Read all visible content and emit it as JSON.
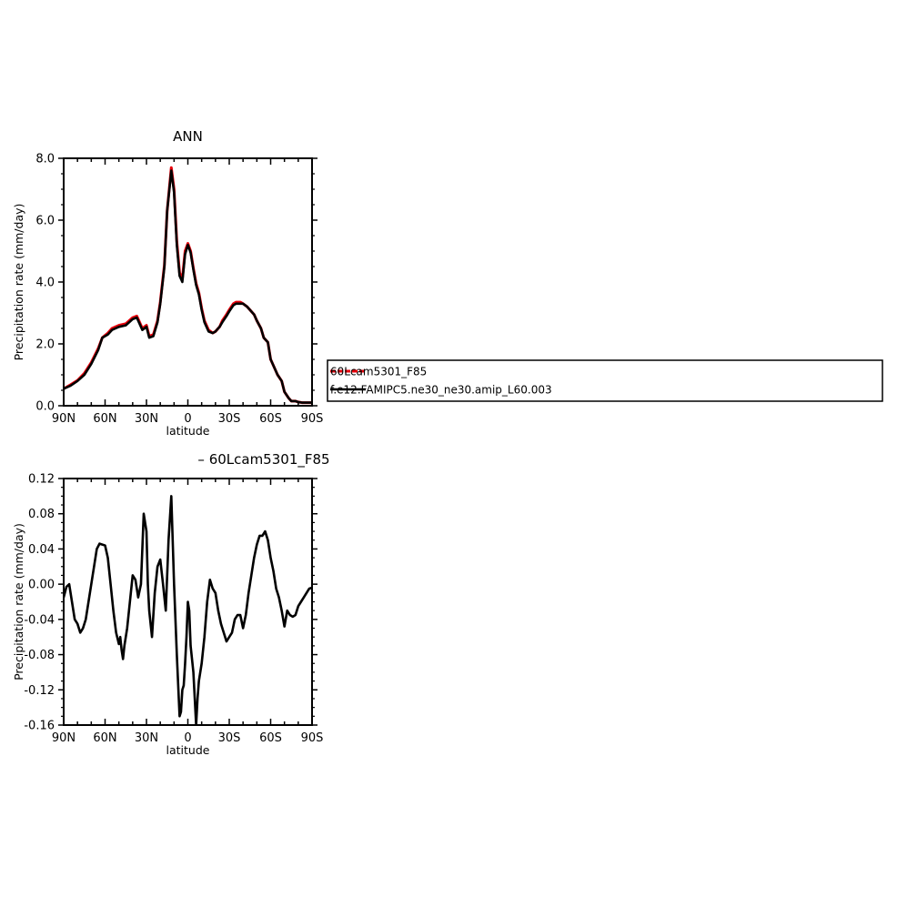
{
  "chart_data": [
    {
      "type": "line",
      "title": "ANN",
      "xlabel": "latitude",
      "ylabel": "Precipitation rate (mm/day)",
      "xlim": [
        90,
        -90
      ],
      "ylim": [
        0,
        8
      ],
      "xticks": [
        90,
        60,
        30,
        0,
        -30,
        -60,
        -90
      ],
      "xtick_labels": [
        "90N",
        "60N",
        "30N",
        "0",
        "30S",
        "60S",
        "90S"
      ],
      "yticks": [
        0,
        2,
        4,
        6,
        8
      ],
      "ytick_labels": [
        "0.0",
        "2.0",
        "4.0",
        "6.0",
        "8.0"
      ],
      "series": [
        {
          "name": "f.e12.FAMIPC5.ne30_ne30.amip_L60.003",
          "color": "#000000",
          "x": [
            90,
            85,
            80,
            75,
            70,
            65,
            62,
            58,
            55,
            50,
            45,
            40,
            37,
            33,
            30,
            28,
            25,
            22,
            20,
            17,
            15,
            12,
            10,
            8,
            6,
            4,
            2,
            0,
            -2,
            -4,
            -6,
            -8,
            -10,
            -12,
            -15,
            -18,
            -20,
            -23,
            -25,
            -28,
            -30,
            -33,
            -35,
            -38,
            -40,
            -43,
            -45,
            -48,
            -50,
            -53,
            -55,
            -58,
            -60,
            -63,
            -65,
            -68,
            -70,
            -73,
            -75,
            -78,
            -80,
            -83,
            -85,
            -88,
            -90
          ],
          "y": [
            0.55,
            0.65,
            0.8,
            1.0,
            1.35,
            1.8,
            2.2,
            2.3,
            2.45,
            2.55,
            2.6,
            2.8,
            2.85,
            2.45,
            2.55,
            2.2,
            2.25,
            2.7,
            3.3,
            4.5,
            6.3,
            7.6,
            6.9,
            5.2,
            4.2,
            4.0,
            4.9,
            5.2,
            4.95,
            4.4,
            3.9,
            3.6,
            3.1,
            2.7,
            2.4,
            2.35,
            2.4,
            2.55,
            2.7,
            2.9,
            3.05,
            3.25,
            3.3,
            3.3,
            3.3,
            3.2,
            3.1,
            2.95,
            2.75,
            2.5,
            2.2,
            2.05,
            1.5,
            1.2,
            1.0,
            0.8,
            0.45,
            0.25,
            0.15,
            0.15,
            0.12,
            0.1,
            0.1,
            0.1,
            0.1
          ]
        },
        {
          "name": "60Lcam5301_F85",
          "color": "#e8000b",
          "x": [
            90,
            85,
            80,
            75,
            70,
            65,
            62,
            58,
            55,
            50,
            45,
            40,
            37,
            33,
            30,
            28,
            25,
            22,
            20,
            17,
            15,
            12,
            10,
            8,
            6,
            4,
            2,
            0,
            -2,
            -4,
            -6,
            -8,
            -10,
            -12,
            -15,
            -18,
            -20,
            -23,
            -25,
            -28,
            -30,
            -33,
            -35,
            -38,
            -40,
            -43,
            -45,
            -48,
            -50,
            -53,
            -55,
            -58,
            -60,
            -63,
            -65,
            -68,
            -70,
            -73,
            -75,
            -78,
            -80,
            -83,
            -85,
            -88,
            -90
          ],
          "y": [
            0.55,
            0.68,
            0.82,
            1.05,
            1.4,
            1.85,
            2.2,
            2.35,
            2.5,
            2.6,
            2.65,
            2.85,
            2.9,
            2.5,
            2.6,
            2.25,
            2.3,
            2.75,
            3.35,
            4.55,
            6.3,
            7.7,
            7.0,
            5.3,
            4.3,
            4.1,
            5.0,
            5.25,
            5.0,
            4.45,
            3.95,
            3.65,
            3.15,
            2.75,
            2.45,
            2.35,
            2.4,
            2.55,
            2.75,
            2.95,
            3.1,
            3.3,
            3.35,
            3.35,
            3.3,
            3.2,
            3.1,
            2.95,
            2.75,
            2.5,
            2.2,
            2.05,
            1.5,
            1.2,
            1.0,
            0.8,
            0.45,
            0.25,
            0.15,
            0.15,
            0.12,
            0.1,
            0.1,
            0.1,
            0.1
          ]
        }
      ],
      "legend": {
        "placement": "right",
        "entries": [
          "60Lcam5301_F85",
          "f.e12.FAMIPC5.ne30_ne30.amip_L60.003"
        ]
      }
    },
    {
      "type": "line",
      "title": "– 60Lcam5301_F85",
      "xlabel": "latitude",
      "ylabel": "Precipitation rate (mm/day)",
      "xlim": [
        90,
        -90
      ],
      "ylim": [
        -0.16,
        0.12
      ],
      "xticks": [
        90,
        60,
        30,
        0,
        -30,
        -60,
        -90
      ],
      "xtick_labels": [
        "90N",
        "60N",
        "30N",
        "0",
        "30S",
        "60S",
        "90S"
      ],
      "yticks": [
        -0.16,
        -0.12,
        -0.08,
        -0.04,
        0.0,
        0.04,
        0.08,
        0.12
      ],
      "ytick_labels": [
        "-0.16",
        "-0.12",
        "-0.08",
        "-0.04",
        "0.00",
        "0.04",
        "0.08",
        "0.12"
      ],
      "series": [
        {
          "name": "",
          "color": "#000000",
          "x": [
            90,
            88,
            86,
            84,
            82,
            80,
            78,
            76,
            74,
            72,
            70,
            68,
            66,
            64,
            62,
            60,
            58,
            56,
            54,
            52,
            50,
            49,
            48,
            47,
            46,
            44,
            42,
            40,
            38,
            36,
            34,
            32,
            30,
            29,
            28,
            26,
            24,
            22,
            20,
            18,
            16,
            14,
            12,
            11,
            10,
            8,
            6,
            5,
            4,
            3,
            2,
            1,
            0,
            -1,
            -2,
            -4,
            -6,
            -7,
            -8,
            -10,
            -12,
            -14,
            -16,
            -18,
            -20,
            -22,
            -24,
            -26,
            -28,
            -30,
            -32,
            -34,
            -36,
            -38,
            -40,
            -42,
            -44,
            -46,
            -48,
            -50,
            -52,
            -54,
            -56,
            -58,
            -60,
            -62,
            -64,
            -66,
            -68,
            -70,
            -72,
            -74,
            -76,
            -78,
            -80,
            -82,
            -84,
            -86,
            -88,
            -90
          ],
          "y": [
            -0.015,
            -0.003,
            0.0,
            -0.02,
            -0.04,
            -0.045,
            -0.055,
            -0.05,
            -0.04,
            -0.02,
            0.0,
            0.02,
            0.04,
            0.046,
            0.045,
            0.044,
            0.03,
            0.0,
            -0.03,
            -0.055,
            -0.068,
            -0.06,
            -0.075,
            -0.085,
            -0.07,
            -0.05,
            -0.02,
            0.01,
            0.005,
            -0.015,
            0.0,
            0.08,
            0.06,
            0.0,
            -0.03,
            -0.06,
            -0.01,
            0.02,
            0.028,
            0.0,
            -0.03,
            0.05,
            0.1,
            0.05,
            0.0,
            -0.08,
            -0.15,
            -0.145,
            -0.12,
            -0.115,
            -0.09,
            -0.06,
            -0.02,
            -0.03,
            -0.07,
            -0.1,
            -0.16,
            -0.13,
            -0.11,
            -0.09,
            -0.06,
            -0.02,
            0.005,
            -0.005,
            -0.01,
            -0.03,
            -0.045,
            -0.055,
            -0.065,
            -0.06,
            -0.055,
            -0.04,
            -0.035,
            -0.035,
            -0.05,
            -0.035,
            -0.01,
            0.01,
            0.03,
            0.045,
            0.055,
            0.055,
            0.06,
            0.05,
            0.03,
            0.015,
            -0.005,
            -0.015,
            -0.03,
            -0.048,
            -0.03,
            -0.035,
            -0.037,
            -0.035,
            -0.025,
            -0.02,
            -0.015,
            -0.01,
            -0.005,
            -0.004
          ]
        }
      ]
    }
  ]
}
